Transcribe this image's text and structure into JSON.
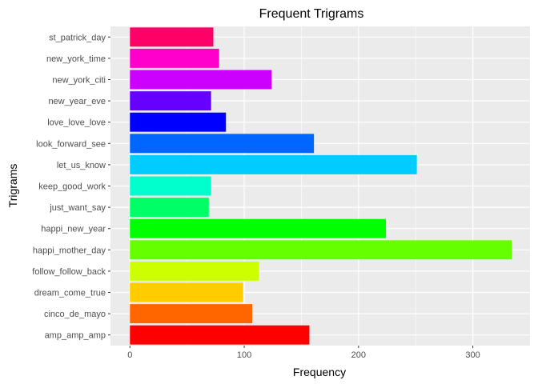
{
  "chart_data": {
    "type": "bar",
    "orientation": "horizontal",
    "title": "Frequent Trigrams",
    "xlabel": "Frequency",
    "ylabel": "Trigrams",
    "categories": [
      "amp_amp_amp",
      "cinco_de_mayo",
      "dream_come_true",
      "follow_follow_back",
      "happi_mother_day",
      "happi_new_year",
      "just_want_say",
      "keep_good_work",
      "let_us_know",
      "look_forward_see",
      "love_love_love",
      "new_year_eve",
      "new_york_citi",
      "new_york_time",
      "st_patrick_day"
    ],
    "values": [
      157,
      107,
      99,
      113,
      334,
      224,
      69,
      71,
      251,
      161,
      84,
      71,
      124,
      78,
      73
    ],
    "colors": [
      "#FF0000",
      "#FF6600",
      "#FFCC00",
      "#CCFF00",
      "#66FF00",
      "#00FF00",
      "#00FF66",
      "#00FFCC",
      "#00CCFF",
      "#0066FF",
      "#0000FF",
      "#6600FF",
      "#CC00FF",
      "#FF00CC",
      "#FF0066"
    ],
    "xlim": [
      -17,
      350
    ],
    "xticks": [
      0,
      100,
      200,
      300
    ],
    "grid": true,
    "panel_background": "#EBEBEB",
    "grid_color": "#FFFFFF",
    "legend": "none"
  }
}
